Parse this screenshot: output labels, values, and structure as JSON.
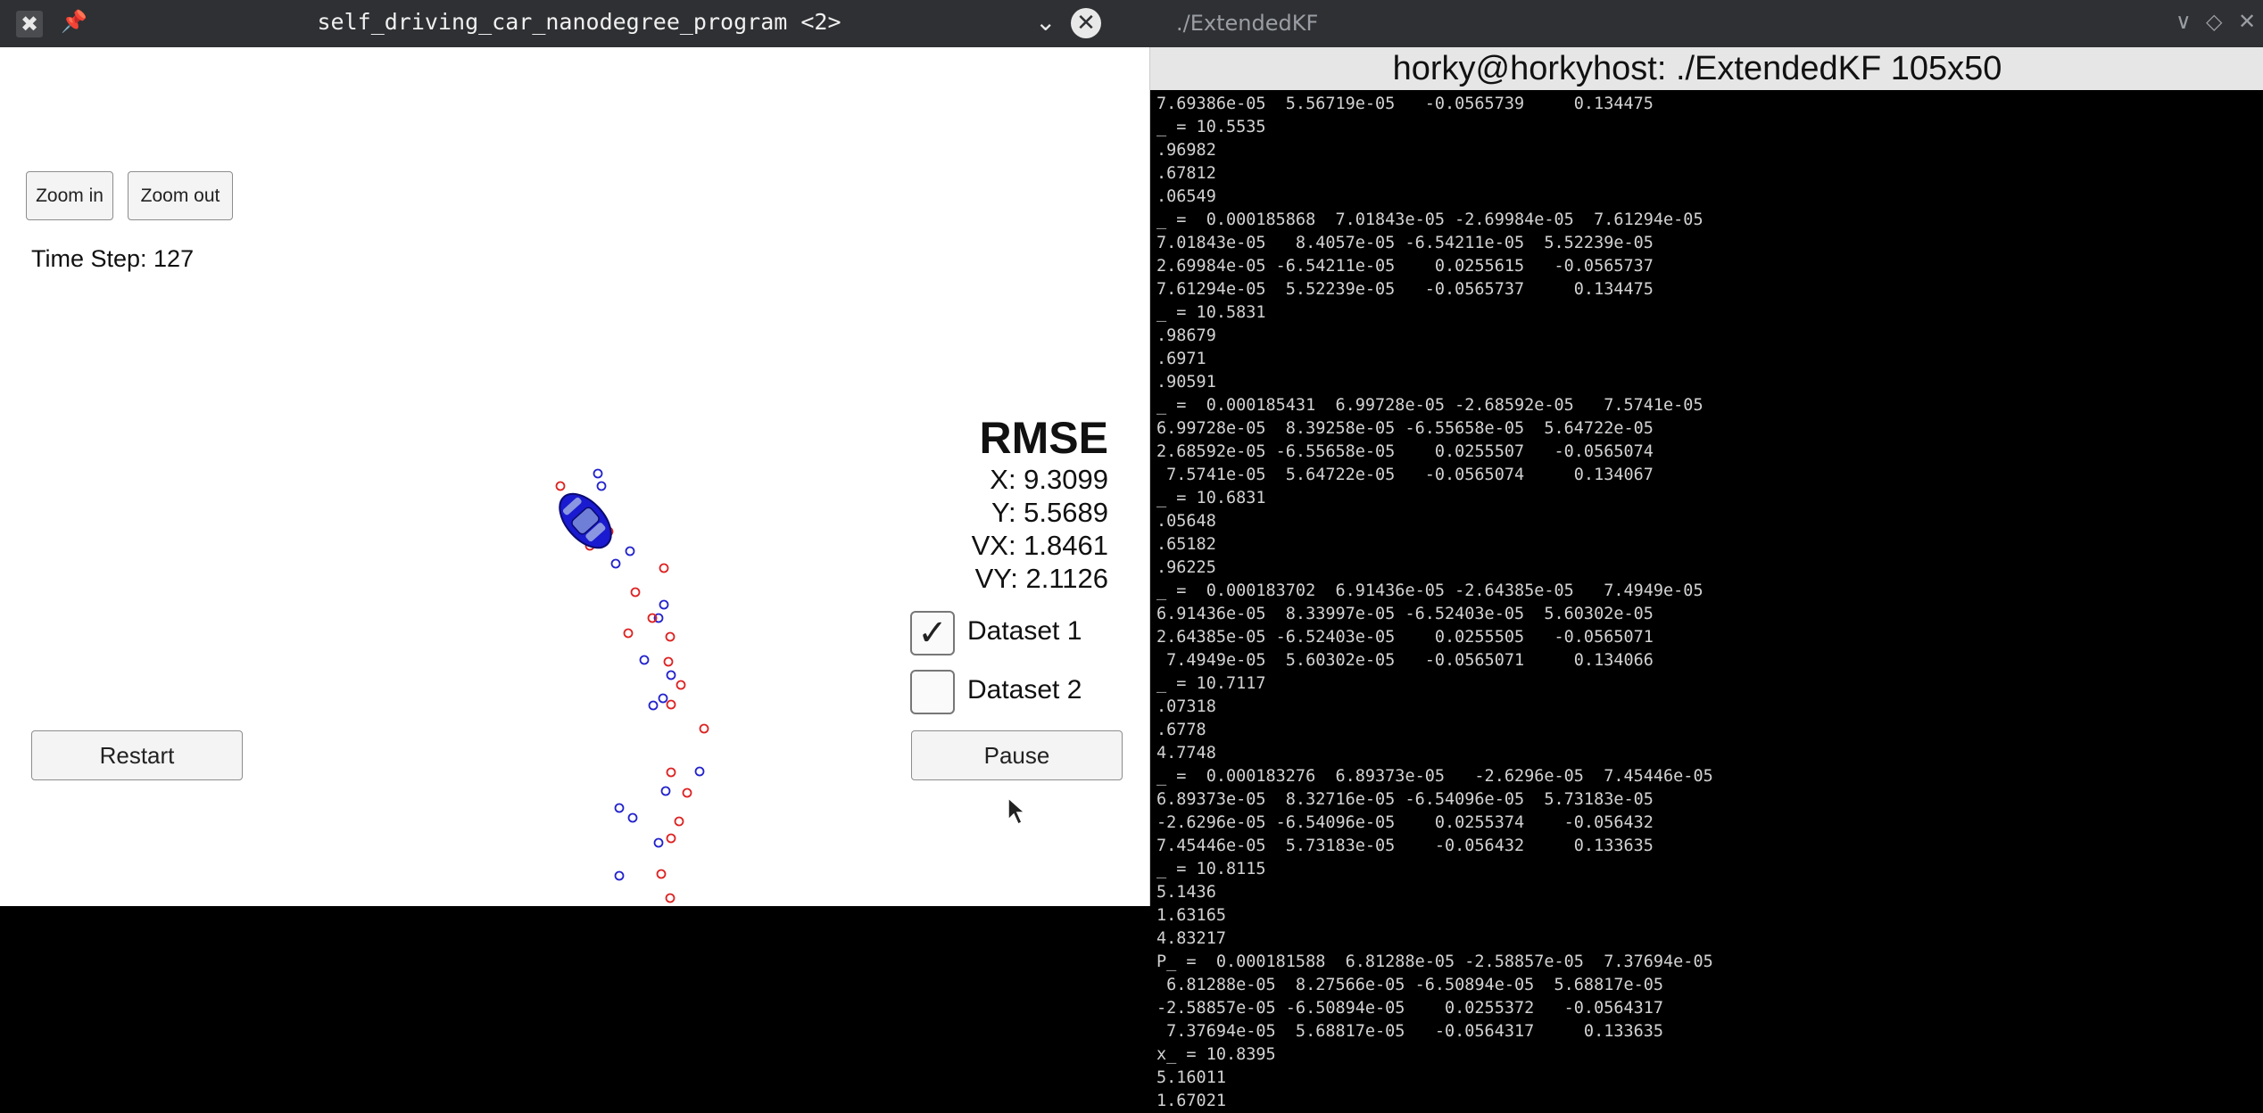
{
  "simulator": {
    "title": "self_driving_car_nanodegree_program <2>",
    "zoom_in_label": "Zoom in",
    "zoom_out_label": "Zoom out",
    "time_step": "Time Step: 127",
    "rmse_title": "RMSE",
    "rmse_x": "X: 9.3099",
    "rmse_y": "Y: 5.5689",
    "rmse_vx": "VX: 1.8461",
    "rmse_vy": "VY: 2.1126",
    "dataset1_label": "Dataset 1",
    "dataset1_checked": true,
    "dataset2_label": "Dataset 2",
    "dataset2_checked": false,
    "restart_label": "Restart",
    "pause_label": "Pause",
    "colors": {
      "lidar": "#2222cc",
      "radar": "#dd2222",
      "car": "#1a1ad0"
    }
  },
  "terminal": {
    "title": "./ExtendedKF",
    "header": "horky@horkyhost: ./ExtendedKF 105x50",
    "lines": [
      "7.69386e-05  5.56719e-05   -0.0565739     0.134475",
      "_ = 10.5535",
      ".96982",
      ".67812",
      ".06549",
      "_ =  0.000185868  7.01843e-05 -2.69984e-05  7.61294e-05",
      "7.01843e-05   8.4057e-05 -6.54211e-05  5.52239e-05",
      "2.69984e-05 -6.54211e-05    0.0255615   -0.0565737",
      "7.61294e-05  5.52239e-05   -0.0565737     0.134475",
      "_ = 10.5831",
      ".98679",
      ".6971",
      ".90591",
      "_ =  0.000185431  6.99728e-05 -2.68592e-05   7.5741e-05",
      "6.99728e-05  8.39258e-05 -6.55658e-05  5.64722e-05",
      "2.68592e-05 -6.55658e-05    0.0255507   -0.0565074",
      " 7.5741e-05  5.64722e-05   -0.0565074     0.134067",
      "_ = 10.6831",
      ".05648",
      ".65182",
      ".96225",
      "_ =  0.000183702  6.91436e-05 -2.64385e-05   7.4949e-05",
      "6.91436e-05  8.33997e-05 -6.52403e-05  5.60302e-05",
      "2.64385e-05 -6.52403e-05    0.0255505   -0.0565071",
      " 7.4949e-05  5.60302e-05   -0.0565071     0.134066",
      "_ = 10.7117",
      ".07318",
      ".6778",
      "4.7748",
      "_ =  0.000183276  6.89373e-05   -2.6296e-05  7.45446e-05",
      "6.89373e-05  8.32716e-05 -6.54096e-05  5.73183e-05",
      "-2.6296e-05 -6.54096e-05    0.0255374    -0.056432",
      "7.45446e-05  5.73183e-05    -0.056432     0.133635",
      "_ = 10.8115",
      "5.1436",
      "1.63165",
      "4.83217",
      "P_ =  0.000181588  6.81288e-05 -2.58857e-05  7.37694e-05",
      " 6.81288e-05  8.27566e-05 -6.50894e-05  5.68817e-05",
      "-2.58857e-05 -6.50894e-05    0.0255372   -0.0564317",
      " 7.37694e-05  5.68817e-05   -0.0564317     0.133635",
      "x_ = 10.8395",
      "5.16011",
      "1.67021"
    ]
  }
}
